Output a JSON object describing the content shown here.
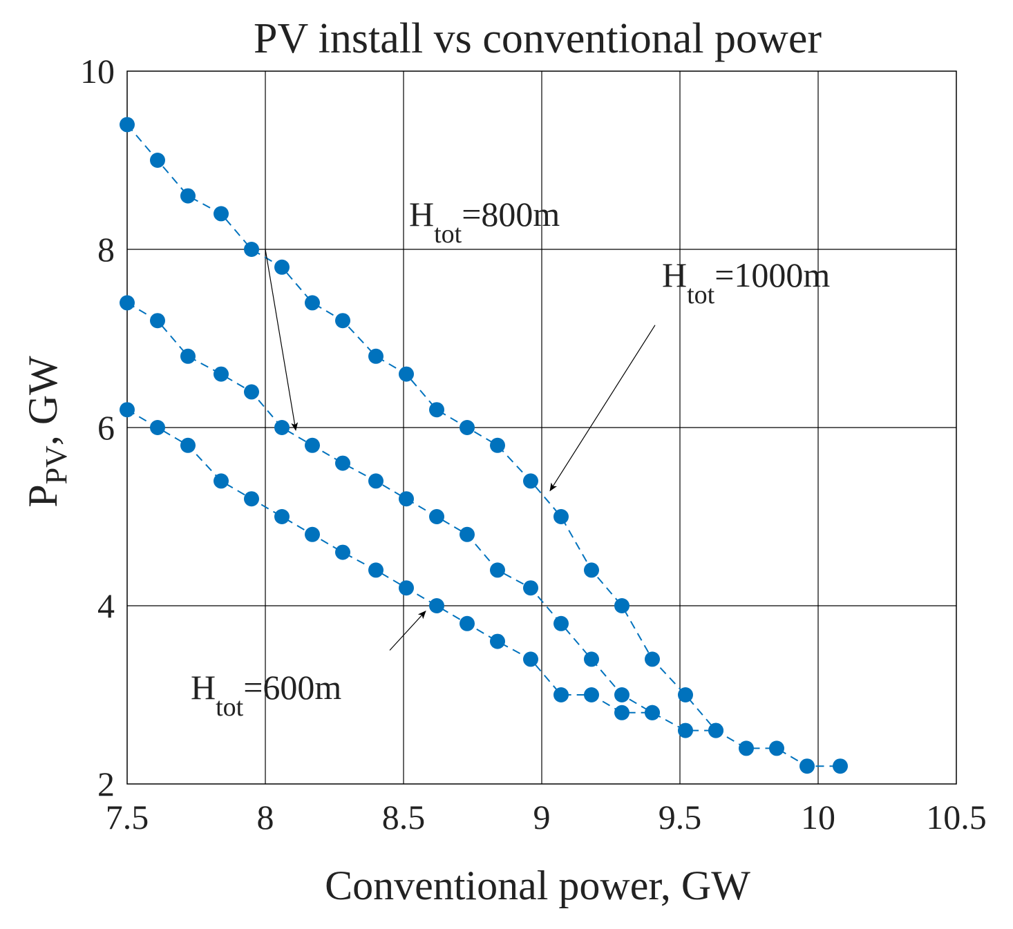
{
  "chart_data": {
    "type": "line",
    "title": "PV install vs conventional power",
    "xlabel": "Conventional power, GW",
    "ylabel": {
      "main": "P",
      "sub": "PV",
      "rest": ", GW"
    },
    "xlim": [
      7.5,
      10.5
    ],
    "ylim": [
      2,
      10
    ],
    "xticks": [
      7.5,
      8,
      8.5,
      9,
      9.5,
      10,
      10.5
    ],
    "yticks": [
      2,
      4,
      6,
      8,
      10
    ],
    "xtick_labels": [
      "7.5",
      "8",
      "8.5",
      "9",
      "9.5",
      "10",
      "10.5"
    ],
    "ytick_labels": [
      "2",
      "4",
      "6",
      "8",
      "10"
    ],
    "grid": true,
    "line_style": "dashed",
    "marker": "circle",
    "color": "#0072bd",
    "series": [
      {
        "name": "H_tot=1000m",
        "x": [
          7.5,
          7.61,
          7.72,
          7.84,
          7.95,
          8.06,
          8.17,
          8.28,
          8.4,
          8.51,
          8.62,
          8.73,
          8.84,
          8.96,
          9.07,
          9.18,
          9.29,
          9.4,
          9.52,
          9.63,
          9.74,
          9.85,
          9.96,
          10.08
        ],
        "y": [
          9.4,
          9.0,
          8.6,
          8.4,
          8.0,
          7.8,
          7.4,
          7.2,
          6.8,
          6.6,
          6.2,
          6.0,
          5.8,
          5.4,
          5.0,
          4.4,
          4.0,
          3.4,
          3.0,
          2.6,
          2.4,
          2.4,
          2.2,
          2.2
        ]
      },
      {
        "name": "H_tot=800m",
        "x": [
          7.5,
          7.61,
          7.72,
          7.84,
          7.95,
          8.06,
          8.17,
          8.28,
          8.4,
          8.51,
          8.62,
          8.73,
          8.84,
          8.96,
          9.07,
          9.18,
          9.29,
          9.4,
          9.52,
          9.63
        ],
        "y": [
          7.4,
          7.2,
          6.8,
          6.6,
          6.4,
          6.0,
          5.8,
          5.6,
          5.4,
          5.2,
          5.0,
          4.8,
          4.4,
          4.2,
          3.8,
          3.4,
          3.0,
          2.8,
          2.6,
          2.6
        ]
      },
      {
        "name": "H_tot=600m",
        "x": [
          7.5,
          7.61,
          7.72,
          7.84,
          7.95,
          8.06,
          8.17,
          8.28,
          8.4,
          8.51,
          8.62,
          8.73,
          8.84,
          8.96,
          9.07,
          9.18,
          9.29,
          9.4
        ],
        "y": [
          6.2,
          6.0,
          5.8,
          5.4,
          5.2,
          5.0,
          4.8,
          4.6,
          4.4,
          4.2,
          4.0,
          3.8,
          3.6,
          3.4,
          3.0,
          3.0,
          2.8,
          2.8
        ]
      }
    ],
    "annotations": [
      {
        "id": "h800",
        "main": "H",
        "sub": "tot",
        "rest": "=800m",
        "arrow_tail": [
          8.0,
          8.0
        ],
        "arrow_head": [
          8.11,
          5.97
        ]
      },
      {
        "id": "h1000",
        "main": "H",
        "sub": "tot",
        "rest": "=1000m",
        "arrow_tail": [
          9.41,
          7.15
        ],
        "arrow_head": [
          9.03,
          5.29
        ]
      },
      {
        "id": "h600",
        "main": "H",
        "sub": "tot",
        "rest": "=600m",
        "arrow_tail": [
          8.45,
          3.5
        ],
        "arrow_head": [
          8.58,
          3.94
        ]
      }
    ]
  }
}
